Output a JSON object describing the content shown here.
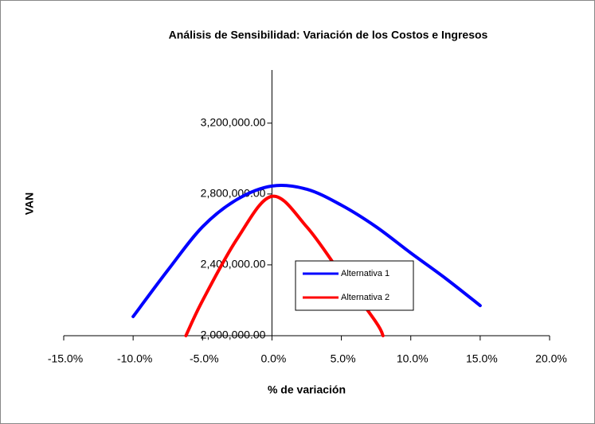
{
  "chart_data": {
    "type": "line",
    "title": "Análisis de Sensibilidad: Variación de los Costos  e Ingresos",
    "x_label": "% de variación",
    "y_label": "VAN",
    "xlim": [
      -15,
      20
    ],
    "xticks": [
      {
        "value": -15,
        "label": "-15.0%"
      },
      {
        "value": -10,
        "label": "-10.0%"
      },
      {
        "value": -5,
        "label": "-5.0%"
      },
      {
        "value": 0,
        "label": "0.0%"
      },
      {
        "value": 5,
        "label": "5.0%"
      },
      {
        "value": 10,
        "label": "10.0%"
      },
      {
        "value": 15,
        "label": "15.0%"
      },
      {
        "value": 20,
        "label": "20.0%"
      }
    ],
    "ylim": [
      2000000,
      3500000
    ],
    "yticks": [
      {
        "value": 2000000,
        "label": "2,000,000.00"
      },
      {
        "value": 2400000,
        "label": "2,400,000.00"
      },
      {
        "value": 2800000,
        "label": "2,800,000.00"
      },
      {
        "value": 3200000,
        "label": "3,200,000.00"
      }
    ],
    "series": [
      {
        "name": "Alternativa 1",
        "color": "#0000ff",
        "x": [
          -10,
          -7.5,
          -5,
          -2.5,
          0,
          2.5,
          5,
          7.5,
          10,
          12.5,
          15
        ],
        "values": [
          2108000,
          2370000,
          2615000,
          2770000,
          2845000,
          2827000,
          2737000,
          2615000,
          2467000,
          2324000,
          2170000
        ]
      },
      {
        "name": "Alternativa 2",
        "color": "#ff0000",
        "x": [
          -6.2,
          -5,
          -2.5,
          0,
          2.5,
          5,
          7.5,
          8
        ],
        "values": [
          2000000,
          2198000,
          2548000,
          2787000,
          2615000,
          2346000,
          2076000,
          2000000
        ]
      }
    ]
  }
}
